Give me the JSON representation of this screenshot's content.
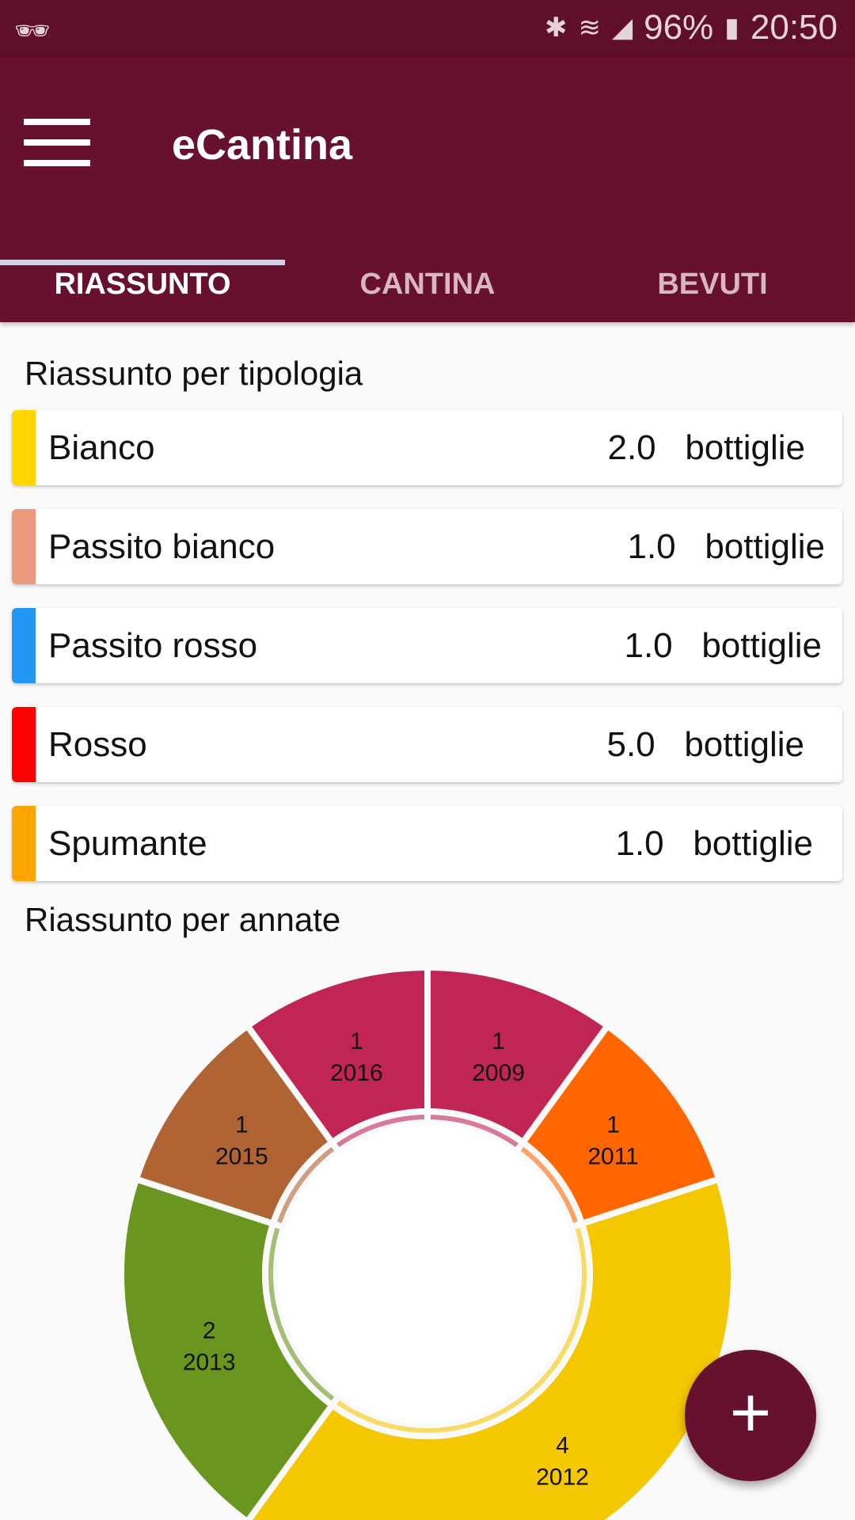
{
  "status_bar": {
    "incognito_icon": "incognito-icon",
    "bluetooth_icon": "bluetooth-icon",
    "wifi_icon": "wifi-icon",
    "signal_icon": "signal-icon",
    "battery": "96%",
    "battery_icon": "battery-charging-icon",
    "time": "20:50"
  },
  "toolbar": {
    "title": "eCantina",
    "menu_icon": "hamburger-menu-icon"
  },
  "tabs": [
    {
      "label": "RIASSUNTO",
      "active": true
    },
    {
      "label": "CANTINA",
      "active": false
    },
    {
      "label": "BEVUTI",
      "active": false
    }
  ],
  "colors": {
    "primary": "#68112d",
    "status_bar": "#5f0f29",
    "tab_indicator": "#d3d0e6"
  },
  "typology": {
    "title": "Riassunto per tipologia",
    "items": [
      {
        "name": "Bianco",
        "value": "2.0",
        "unit": "bottiglie",
        "color": "#ffd600"
      },
      {
        "name": "Passito bianco",
        "value": "1.0",
        "unit": "bottiglie",
        "color": "#ec9a7e"
      },
      {
        "name": "Passito rosso",
        "value": "1.0",
        "unit": "bottiglie",
        "color": "#2196f3"
      },
      {
        "name": "Rosso",
        "value": "5.0",
        "unit": "bottiglie",
        "color": "#ff0000"
      },
      {
        "name": "Spumante",
        "value": "1.0",
        "unit": "bottiglie",
        "color": "#ffa500"
      }
    ]
  },
  "vintages": {
    "title": "Riassunto per annate"
  },
  "chart_data": {
    "type": "pie",
    "donut": true,
    "categories": [
      "2009",
      "2011",
      "2012",
      "2013",
      "2015",
      "2016"
    ],
    "values": [
      1,
      1,
      4,
      2,
      1,
      1
    ],
    "colors": [
      "#c02553",
      "#ff6600",
      "#f4c800",
      "#6a961f",
      "#b06434",
      "#c02553"
    ],
    "labels": [
      {
        "count": "1",
        "year": "2009"
      },
      {
        "count": "1",
        "year": "2011"
      },
      {
        "count": "4",
        "year": "2012"
      },
      {
        "count": "2",
        "year": "2013"
      },
      {
        "count": "1",
        "year": "2015"
      },
      {
        "count": "1",
        "year": "2016"
      }
    ]
  },
  "fab": {
    "label": "+",
    "icon": "add-icon"
  }
}
